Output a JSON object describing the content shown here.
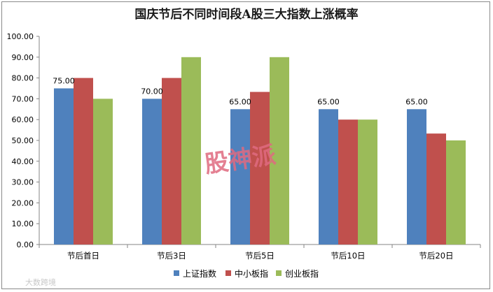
{
  "chart_data": {
    "type": "bar",
    "title": "国庆节后不同时间段A股三大指数上涨概率",
    "categories": [
      "节后首日",
      "节后3日",
      "节后5日",
      "节后10日",
      "节后20日"
    ],
    "series": [
      {
        "name": "上证指数",
        "values": [
          75.0,
          70.0,
          65.0,
          65.0,
          65.0
        ],
        "color": "#4F81BD",
        "labels": [
          "75.00",
          "70.00",
          "65.00",
          "65.00",
          "65.00"
        ]
      },
      {
        "name": "中小板指",
        "values": [
          80.0,
          80.0,
          73.3,
          60.0,
          53.3
        ],
        "color": "#C0504D"
      },
      {
        "name": "创业板指",
        "values": [
          70.0,
          90.0,
          90.0,
          60.0,
          50.0
        ],
        "color": "#9BBB59"
      }
    ],
    "ylim": [
      0,
      100
    ],
    "yticks": [
      "0.00",
      "10.00",
      "20.00",
      "30.00",
      "40.00",
      "50.00",
      "60.00",
      "70.00",
      "80.00",
      "90.00",
      "100.00"
    ],
    "grid": false,
    "legend": "bottom"
  },
  "watermark": "股神派",
  "corner_mark": "大数跨境"
}
